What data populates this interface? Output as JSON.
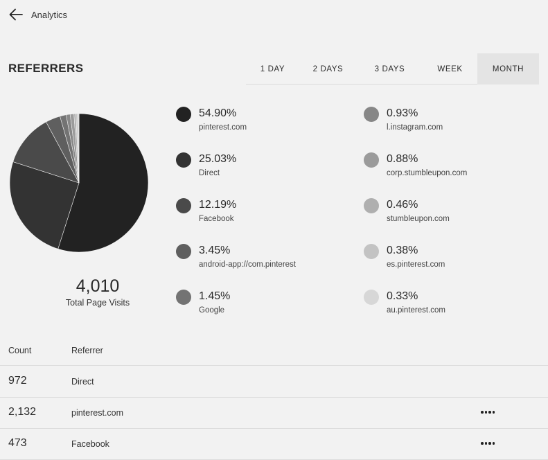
{
  "header": {
    "title": "Analytics",
    "back_icon": "arrow-left-icon"
  },
  "section": {
    "title": "REFERRERS"
  },
  "tabs": [
    {
      "label": "1 DAY",
      "active": false
    },
    {
      "label": "2 DAYS",
      "active": false
    },
    {
      "label": "3 DAYS",
      "active": false
    },
    {
      "label": "WEEK",
      "active": false
    },
    {
      "label": "MONTH",
      "active": true
    }
  ],
  "summary": {
    "total": "4,010",
    "total_label": "Total Page Visits"
  },
  "referrers": [
    {
      "percent": "54.90%",
      "value": 54.9,
      "name": "pinterest.com",
      "color": "#222222"
    },
    {
      "percent": "25.03%",
      "value": 25.03,
      "name": "Direct",
      "color": "#333333"
    },
    {
      "percent": "12.19%",
      "value": 12.19,
      "name": "Facebook",
      "color": "#4a4a4a"
    },
    {
      "percent": "3.45%",
      "value": 3.45,
      "name": "android-app://com.pinterest",
      "color": "#5f5f5f"
    },
    {
      "percent": "1.45%",
      "value": 1.45,
      "name": "Google",
      "color": "#737373"
    },
    {
      "percent": "0.93%",
      "value": 0.93,
      "name": "l.instagram.com",
      "color": "#878787"
    },
    {
      "percent": "0.88%",
      "value": 0.88,
      "name": "corp.stumbleupon.com",
      "color": "#9b9b9b"
    },
    {
      "percent": "0.46%",
      "value": 0.46,
      "name": "stumbleupon.com",
      "color": "#afafaf"
    },
    {
      "percent": "0.38%",
      "value": 0.38,
      "name": "es.pinterest.com",
      "color": "#c3c3c3"
    },
    {
      "percent": "0.33%",
      "value": 0.33,
      "name": "au.pinterest.com",
      "color": "#d7d7d7"
    }
  ],
  "table": {
    "headers": {
      "count": "Count",
      "referrer": "Referrer"
    },
    "rows": [
      {
        "count": "972",
        "referrer": "Direct",
        "has_menu": false
      },
      {
        "count": "2,132",
        "referrer": "pinterest.com",
        "has_menu": true
      },
      {
        "count": "473",
        "referrer": "Facebook",
        "has_menu": true
      }
    ]
  }
}
